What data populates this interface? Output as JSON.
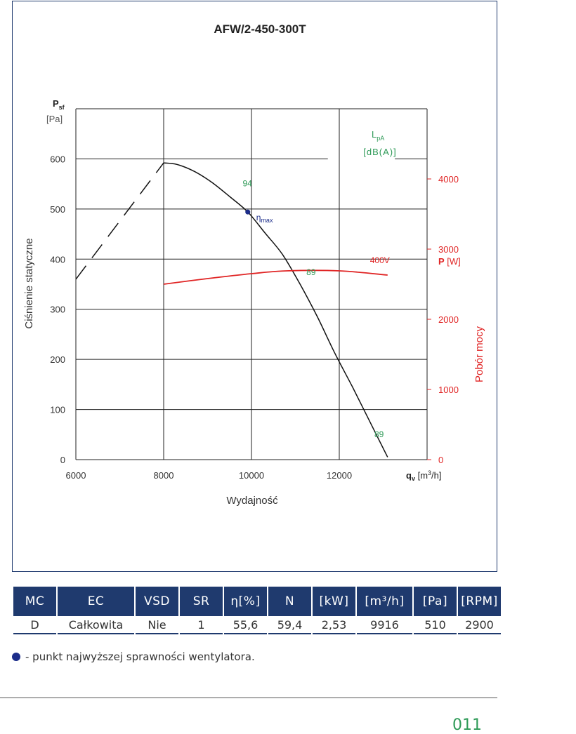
{
  "chart_data": {
    "type": "line",
    "title": "AFW/2-450-300T",
    "xlabel": "Wydajność",
    "ylabel": "Ciśnienie statyczne",
    "y2label": "Pobór mocy",
    "x_axis_symbol": "q",
    "x_axis_symbol_sub": "v",
    "x_unit_prefix": "[m",
    "x_unit_sup": "3",
    "x_unit_suffix": "/h]",
    "y_axis_symbol": "P",
    "y_axis_symbol_sub": "sf",
    "y_unit": "[Pa]",
    "y2_axis_symbol": "P",
    "y2_unit": "[W]",
    "xlim": [
      6000,
      14000
    ],
    "ylim": [
      0,
      700
    ],
    "y2lim": [
      0,
      5000
    ],
    "x_ticks": [
      6000,
      8000,
      10000,
      12000
    ],
    "y_ticks": [
      0,
      100,
      200,
      300,
      400,
      500,
      600
    ],
    "y2_ticks": [
      0,
      1000,
      2000,
      3000,
      4000
    ],
    "grid": true,
    "series": [
      {
        "name": "",
        "kind": "fan-curve",
        "color": "#111111",
        "x": [
          8000,
          8300,
          8700,
          9100,
          9500,
          9916,
          10300,
          10700,
          11100,
          11500,
          11900,
          12300,
          12700,
          13100
        ],
        "y": [
          592,
          589,
          575,
          553,
          525,
          494,
          453,
          410,
          351,
          285,
          212,
          145,
          75,
          5
        ]
      },
      {
        "name": "",
        "kind": "stall-extension",
        "color": "#111111",
        "dashed": true,
        "x": [
          6000,
          8000
        ],
        "y": [
          360,
          592
        ]
      },
      {
        "name": "400V",
        "kind": "power",
        "axis": "y2",
        "color": "#e02424",
        "x": [
          8000,
          9000,
          10000,
          10800,
          12000,
          13100
        ],
        "y": [
          2500,
          2580,
          2650,
          2690,
          2690,
          2630
        ]
      }
    ],
    "sound_label_title": "L",
    "sound_label_sub": "pA",
    "sound_label_unit": "[dB(A)]",
    "sound_labels": [
      {
        "text": "94",
        "x": 9800,
        "y": 545
      },
      {
        "text": "89",
        "x": 11250,
        "y": 368
      },
      {
        "text": "89",
        "x": 12800,
        "y": 45
      }
    ],
    "series_labels": [
      {
        "text": "400V",
        "x": 12700,
        "y2": 2800
      }
    ],
    "eta_max": {
      "x": 9916,
      "y": 494,
      "label": "η",
      "label_sub": "max"
    },
    "colors": {
      "grid": "#222222",
      "green": "#2e9a57",
      "red": "#e02424",
      "eta": "#1c2d8a"
    }
  },
  "table": {
    "headers": [
      "MC",
      "EC",
      "VSD",
      "SR",
      "η[%]",
      "N",
      "[kW]",
      "[m³/h]",
      "[Pa]",
      "[RPM]"
    ],
    "row": [
      "D",
      "Całkowita",
      "Nie",
      "1",
      "55,6",
      "59,4",
      "2,53",
      "9916",
      "510",
      "2900"
    ]
  },
  "legend_note": "- punkt najwyższej sprawności wentylatora.",
  "page_number": "011"
}
